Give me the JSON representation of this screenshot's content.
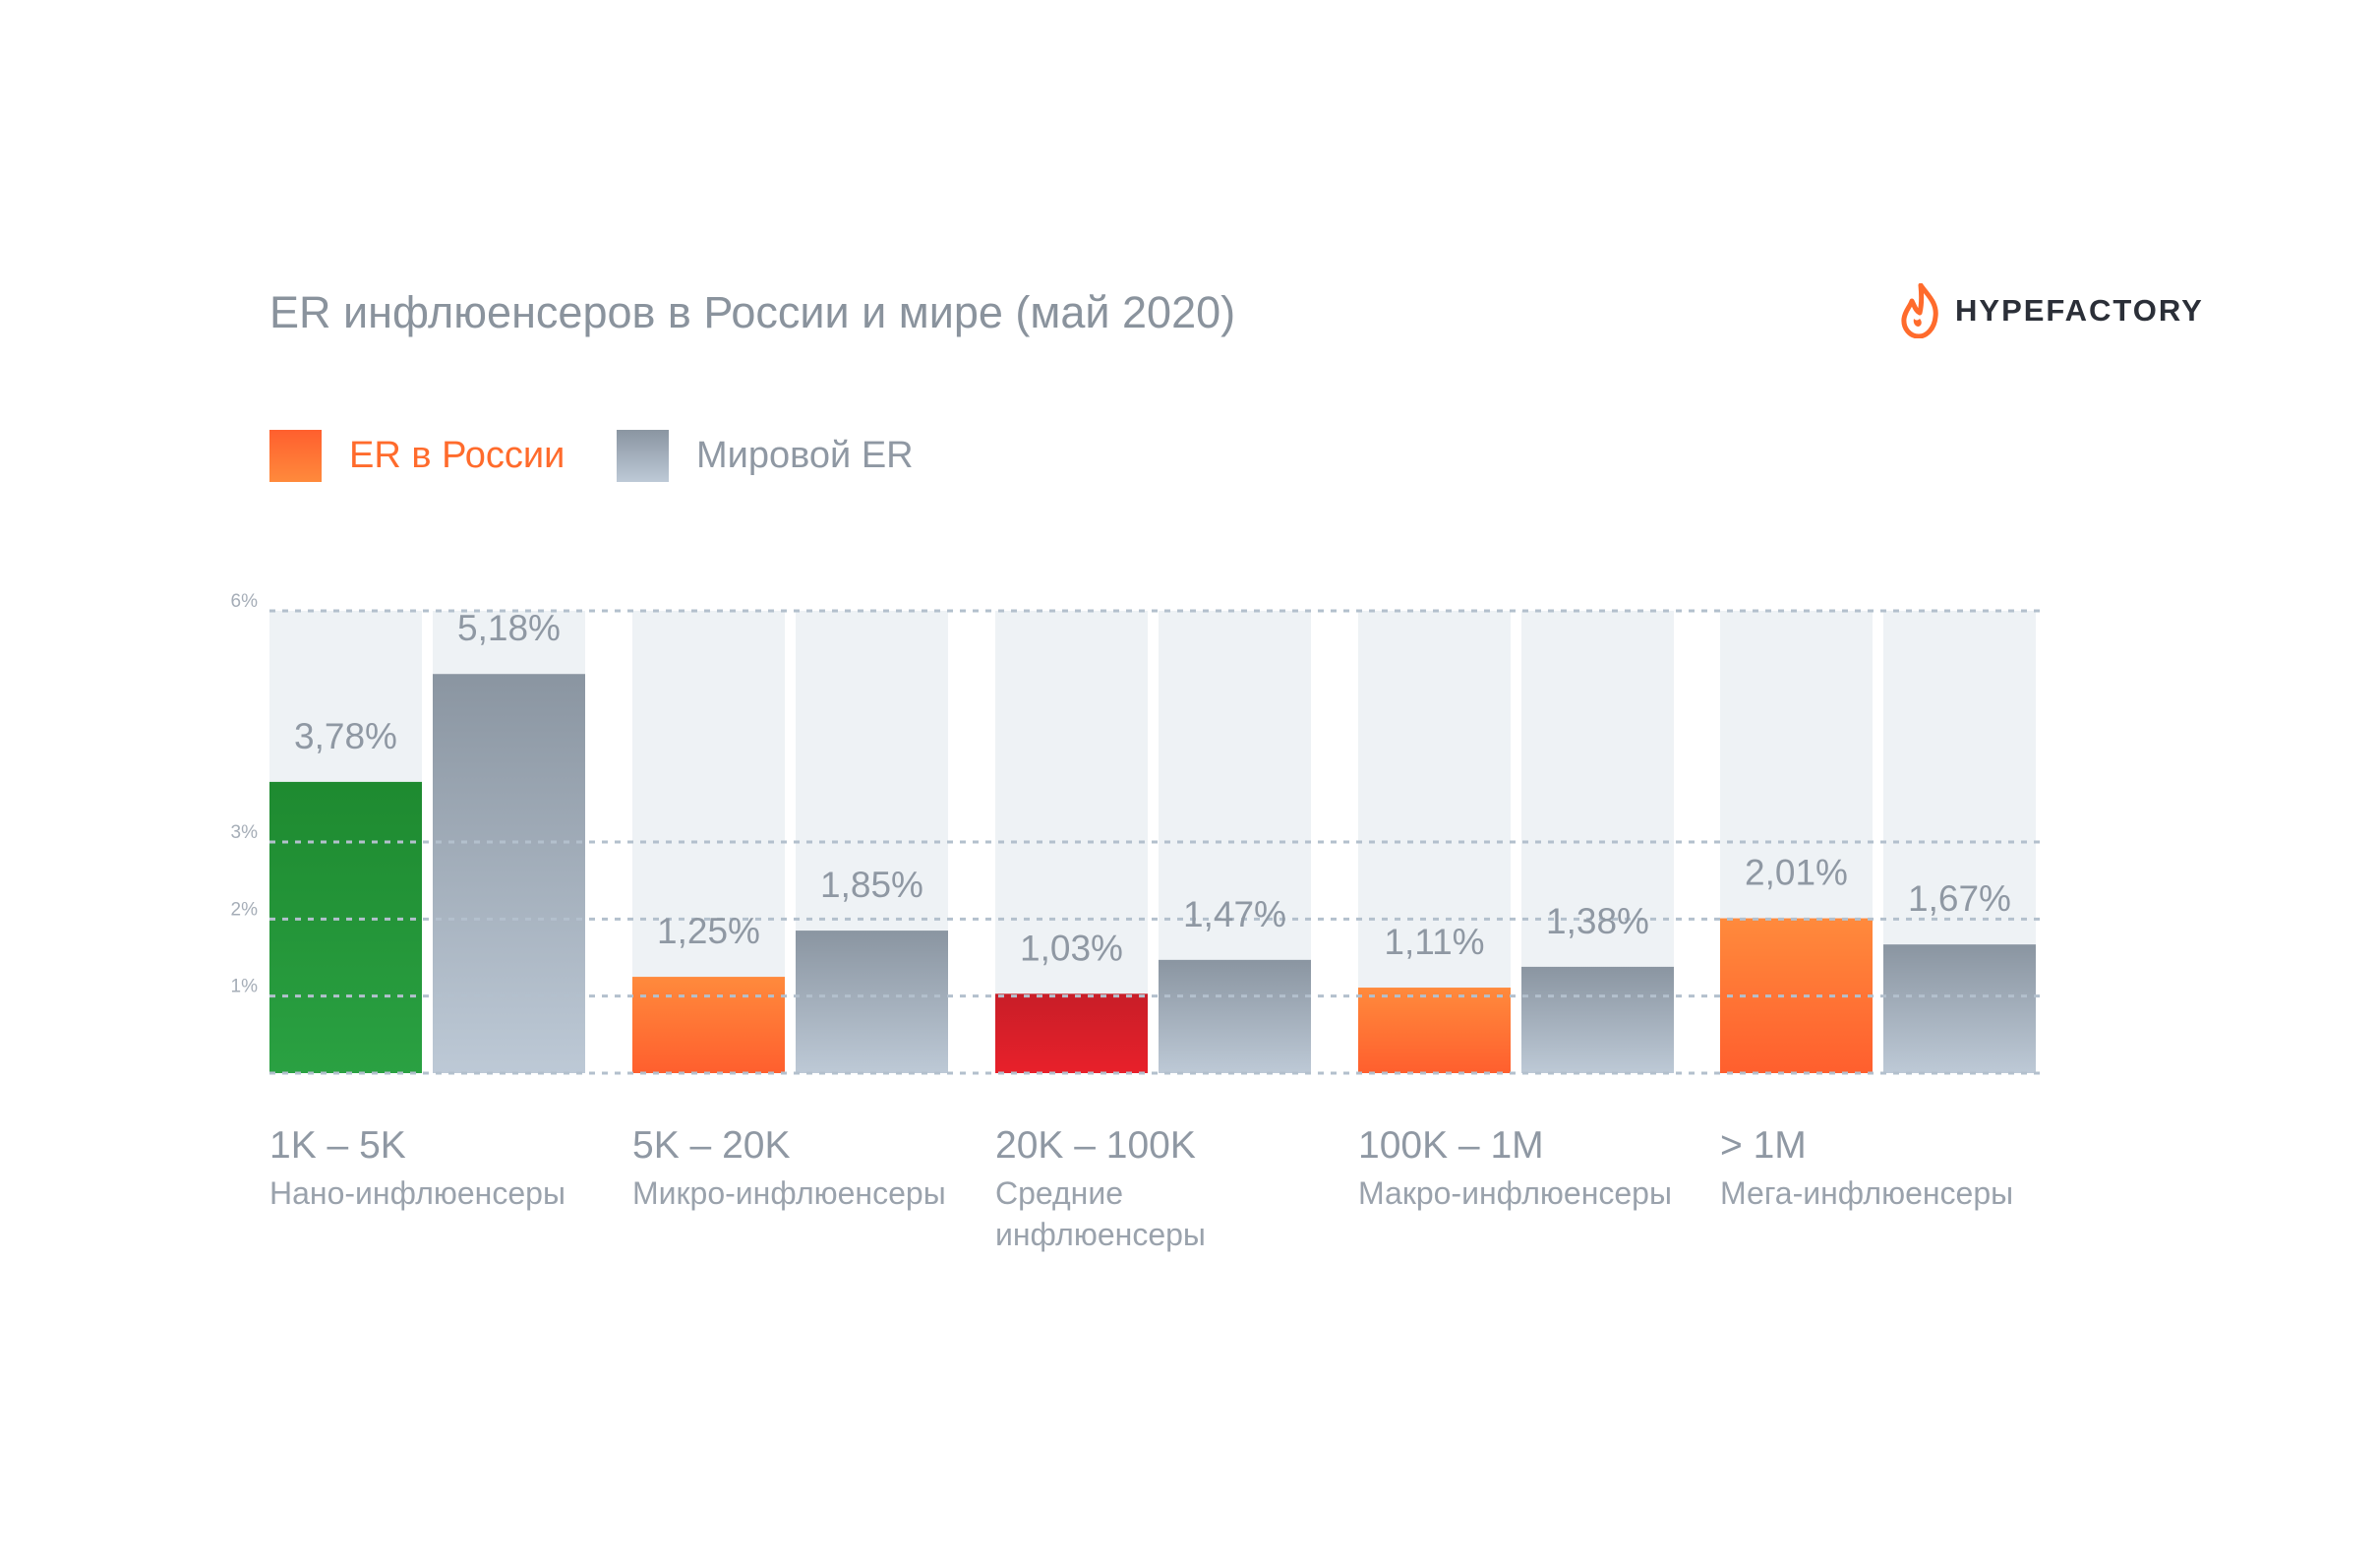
{
  "title": "ER инфлюенсеров в России и мире (май 2020)",
  "brand": {
    "name": "HYPEFACTORY",
    "icon": "flame-logo-icon",
    "color": "#ff6b2c"
  },
  "legend": [
    {
      "label": "ER в России",
      "color": "#ff6b2c"
    },
    {
      "label": "Мировой ER",
      "color": "#8f9aa6"
    }
  ],
  "chart_data": {
    "type": "bar",
    "title": "ER инфлюенсеров в России и мире (май 2020)",
    "xlabel": "",
    "ylabel": "",
    "ylim": [
      0,
      6
    ],
    "y_ticks": [
      "1%",
      "2%",
      "3%",
      "6%"
    ],
    "y_tick_values": [
      1,
      2,
      3,
      6
    ],
    "grid": true,
    "legend_position": "top-left",
    "categories": [
      {
        "range": "1K – 5K",
        "name": [
          "Нано-инфлюенсеры"
        ]
      },
      {
        "range": "5K – 20K",
        "name": [
          "Микро-инфлюенсеры"
        ]
      },
      {
        "range": "20K – 100K",
        "name": [
          "Средние",
          "инфлюенсеры"
        ]
      },
      {
        "range": "100K – 1M",
        "name": [
          "Макро-инфлюенсеры"
        ]
      },
      {
        "range": "> 1M",
        "name": [
          "Мега-инфлюенсеры"
        ]
      }
    ],
    "series": [
      {
        "name": "ER в России",
        "values": [
          3.78,
          1.25,
          1.03,
          1.11,
          2.01
        ],
        "value_labels": [
          "3,78%",
          "1,25%",
          "1,03%",
          "1,11%",
          "2,01%"
        ],
        "bar_colors": [
          "green",
          "orange",
          "red",
          "orange",
          "orange"
        ]
      },
      {
        "name": "Мировой ER",
        "values": [
          5.18,
          1.85,
          1.47,
          1.38,
          1.67
        ],
        "value_labels": [
          "5,18%",
          "1,85%",
          "1,47%",
          "1,38%",
          "1,67%"
        ],
        "bar_colors": [
          "grey",
          "grey",
          "grey",
          "grey",
          "grey"
        ]
      }
    ],
    "colors": {
      "green": [
        "#2aa142",
        "#1e8a30"
      ],
      "orange": [
        "#ff5f2e",
        "#ff8a3c"
      ],
      "red": [
        "#e8202a",
        "#c81e28"
      ],
      "grey": [
        "#bdc9d6",
        "#8a95a1"
      ],
      "track": "#eef2f5",
      "grid": "#b3c0cd"
    }
  }
}
